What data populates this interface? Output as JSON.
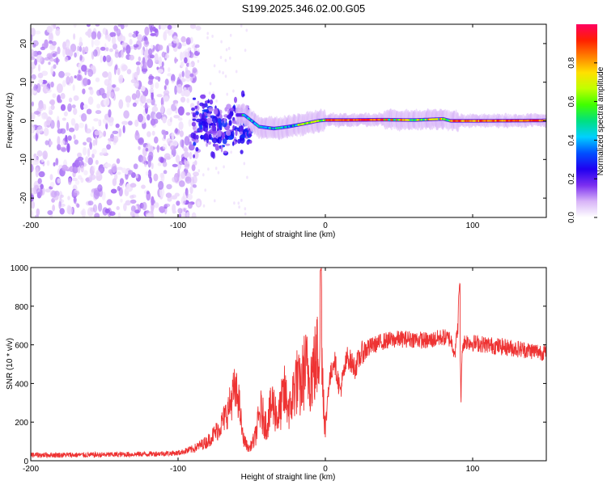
{
  "title": "S199.2025.346.02.00.G05",
  "chart_data": [
    {
      "type": "heatmap",
      "name": "spectrogram",
      "xlabel": "Height of straight line (km)",
      "ylabel": "Frequency (Hz)",
      "xlim": [
        -200,
        150
      ],
      "ylim": [
        -25,
        25
      ],
      "xticks": [
        -200,
        -100,
        0,
        100
      ],
      "xtick_labels": [
        "-200",
        "-100",
        "0",
        "100"
      ],
      "yticks": [
        -20,
        -10,
        0,
        10,
        20
      ],
      "ytick_labels": [
        "-20",
        "-10",
        "0",
        "10",
        "20"
      ],
      "colorbar": {
        "label": "Normalized spectral amplitude",
        "range": [
          0,
          1
        ],
        "ticks": [
          0,
          0.2,
          0.4,
          0.6,
          0.8
        ],
        "tick_labels": [
          "0.0",
          "0.2",
          "0.4",
          "0.6",
          "0.8"
        ],
        "colormap": [
          "#ffffff",
          "#d8b4f8",
          "#7b2ff0",
          "#2000f0",
          "#0050ff",
          "#00d0ff",
          "#00e080",
          "#40ff00",
          "#c0ff00",
          "#ffe000",
          "#ff8000",
          "#ff2000",
          "#ff0060"
        ]
      },
      "ridge": {
        "description_values_km_hz": [
          [
            -55,
            1.5
          ],
          [
            -45,
            -1.5
          ],
          [
            -35,
            -2
          ],
          [
            -25,
            -1.5
          ],
          [
            -15,
            -0.8
          ],
          [
            -5,
            0
          ],
          [
            0,
            0.2
          ],
          [
            10,
            0.2
          ],
          [
            40,
            0.3
          ],
          [
            60,
            0.2
          ],
          [
            80,
            0.5
          ],
          [
            85,
            0
          ],
          [
            100,
            0
          ],
          [
            150,
            0.1
          ]
        ],
        "noise_region_km": [
          -200,
          -90
        ],
        "transition_region_km": [
          -90,
          -50
        ]
      }
    },
    {
      "type": "line",
      "name": "snr",
      "xlabel": "Height of straight line (km)",
      "ylabel": "SNR (10 * v/v)",
      "xlim": [
        -200,
        150
      ],
      "ylim": [
        0,
        1000
      ],
      "xticks": [
        -200,
        -100,
        0,
        100
      ],
      "xtick_labels": [
        "-200",
        "-100",
        "0",
        "100"
      ],
      "yticks": [
        0,
        200,
        400,
        600,
        800,
        1000
      ],
      "ytick_labels": [
        "0",
        "200",
        "400",
        "600",
        "800",
        "1000"
      ],
      "series": [
        {
          "name": "SNR",
          "color": "#ee3333",
          "x": [
            -200,
            -180,
            -160,
            -140,
            -120,
            -100,
            -90,
            -80,
            -72,
            -66,
            -62,
            -59,
            -56,
            -52,
            -48,
            -44,
            -40,
            -36,
            -32,
            -28,
            -24,
            -20,
            -17,
            -14,
            -10,
            -6,
            -4,
            -3,
            -2,
            0,
            2,
            6,
            10,
            15,
            20,
            25,
            30,
            40,
            50,
            60,
            70,
            80,
            85,
            88,
            90,
            91,
            92,
            93,
            95,
            100,
            110,
            120,
            130,
            140,
            150
          ],
          "y": [
            30,
            30,
            30,
            32,
            35,
            40,
            60,
            100,
            170,
            260,
            360,
            330,
            120,
            60,
            110,
            260,
            180,
            300,
            220,
            350,
            260,
            420,
            370,
            480,
            440,
            520,
            600,
            1000,
            470,
            150,
            380,
            530,
            360,
            540,
            480,
            560,
            590,
            620,
            630,
            630,
            620,
            640,
            630,
            560,
            700,
            920,
            300,
            600,
            620,
            610,
            600,
            590,
            580,
            570,
            560
          ]
        }
      ]
    }
  ]
}
